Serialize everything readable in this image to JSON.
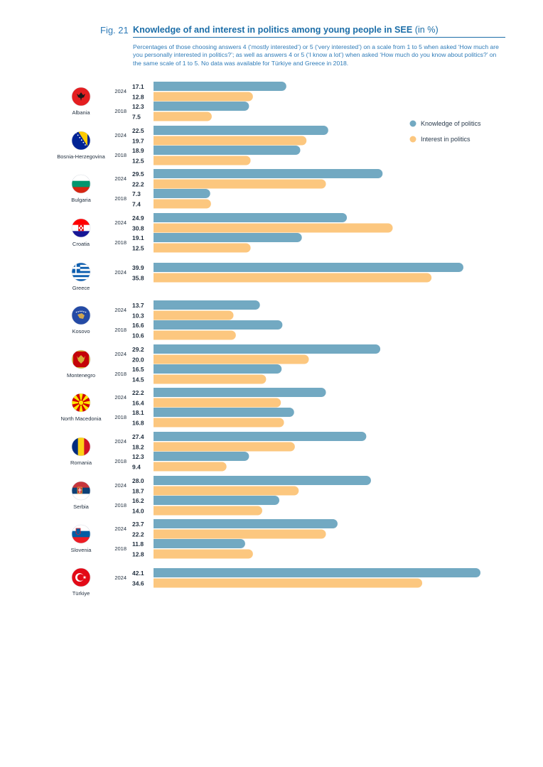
{
  "figure": {
    "number": "Fig. 21",
    "title": "Knowledge of and interest in politics among young people in SEE",
    "unit": "(in %)",
    "subtitle": "Percentages of those choosing answers 4 (‘mostly interested’) or 5 (‘very interested’) on a scale from 1 to 5 when asked ‘How much are you personally interested in politics?’; as well as answers 4 or 5 (‘I know a lot’) when asked ‘How much do you know about politics?’ on the same scale of 1 to 5. No data was available for Türkiye and Greece in 2018."
  },
  "chart_data": {
    "type": "bar",
    "orientation": "horizontal",
    "xlim": [
      0,
      42.1
    ],
    "legend": {
      "placement": "right"
    },
    "series": [
      {
        "key": "knowledge",
        "name": "Knowledge of politics",
        "color": "#72a9c2"
      },
      {
        "key": "interest",
        "name": "Interest in politics",
        "color": "#fcc77f"
      }
    ],
    "countries": [
      {
        "name": "Albania",
        "flag": "albania",
        "years": [
          {
            "year": "2024",
            "knowledge": 17.1,
            "interest": 12.8
          },
          {
            "year": "2018",
            "knowledge": 12.3,
            "interest": 7.5
          }
        ]
      },
      {
        "name": "Bosnia-Herzegovina",
        "flag": "bosnia",
        "years": [
          {
            "year": "2024",
            "knowledge": 22.5,
            "interest": 19.7
          },
          {
            "year": "2018",
            "knowledge": 18.9,
            "interest": 12.5
          }
        ]
      },
      {
        "name": "Bulgaria",
        "flag": "bulgaria",
        "years": [
          {
            "year": "2024",
            "knowledge": 29.5,
            "interest": 22.2
          },
          {
            "year": "2018",
            "knowledge": 7.3,
            "interest": 7.4
          }
        ]
      },
      {
        "name": "Croatia",
        "flag": "croatia",
        "years": [
          {
            "year": "2024",
            "knowledge": 24.9,
            "interest": 30.8
          },
          {
            "year": "2018",
            "knowledge": 19.1,
            "interest": 12.5
          }
        ]
      },
      {
        "name": "Greece",
        "flag": "greece",
        "years": [
          {
            "year": "2024",
            "knowledge": 39.9,
            "interest": 35.8
          }
        ]
      },
      {
        "name": "Kosovo",
        "flag": "kosovo",
        "years": [
          {
            "year": "2024",
            "knowledge": 13.7,
            "interest": 10.3
          },
          {
            "year": "2018",
            "knowledge": 16.6,
            "interest": 10.6
          }
        ]
      },
      {
        "name": "Montenegro",
        "flag": "montenegro",
        "years": [
          {
            "year": "2024",
            "knowledge": 29.2,
            "interest": 20.0
          },
          {
            "year": "2018",
            "knowledge": 16.5,
            "interest": 14.5
          }
        ]
      },
      {
        "name": "North Macedonia",
        "flag": "north-macedonia",
        "years": [
          {
            "year": "2024",
            "knowledge": 22.2,
            "interest": 16.4
          },
          {
            "year": "2018",
            "knowledge": 18.1,
            "interest": 16.8
          }
        ]
      },
      {
        "name": "Romania",
        "flag": "romania",
        "years": [
          {
            "year": "2024",
            "knowledge": 27.4,
            "interest": 18.2
          },
          {
            "year": "2018",
            "knowledge": 12.3,
            "interest": 9.4
          }
        ]
      },
      {
        "name": "Serbia",
        "flag": "serbia",
        "years": [
          {
            "year": "2024",
            "knowledge": 28.0,
            "interest": 18.7
          },
          {
            "year": "2018",
            "knowledge": 16.2,
            "interest": 14.0
          }
        ]
      },
      {
        "name": "Slovenia",
        "flag": "slovenia",
        "years": [
          {
            "year": "2024",
            "knowledge": 23.7,
            "interest": 22.2
          },
          {
            "year": "2018",
            "knowledge": 11.8,
            "interest": 12.8
          }
        ]
      },
      {
        "name": "Türkiye",
        "flag": "turkiye",
        "years": [
          {
            "year": "2024",
            "knowledge": 42.1,
            "interest": 34.6
          }
        ]
      }
    ]
  }
}
